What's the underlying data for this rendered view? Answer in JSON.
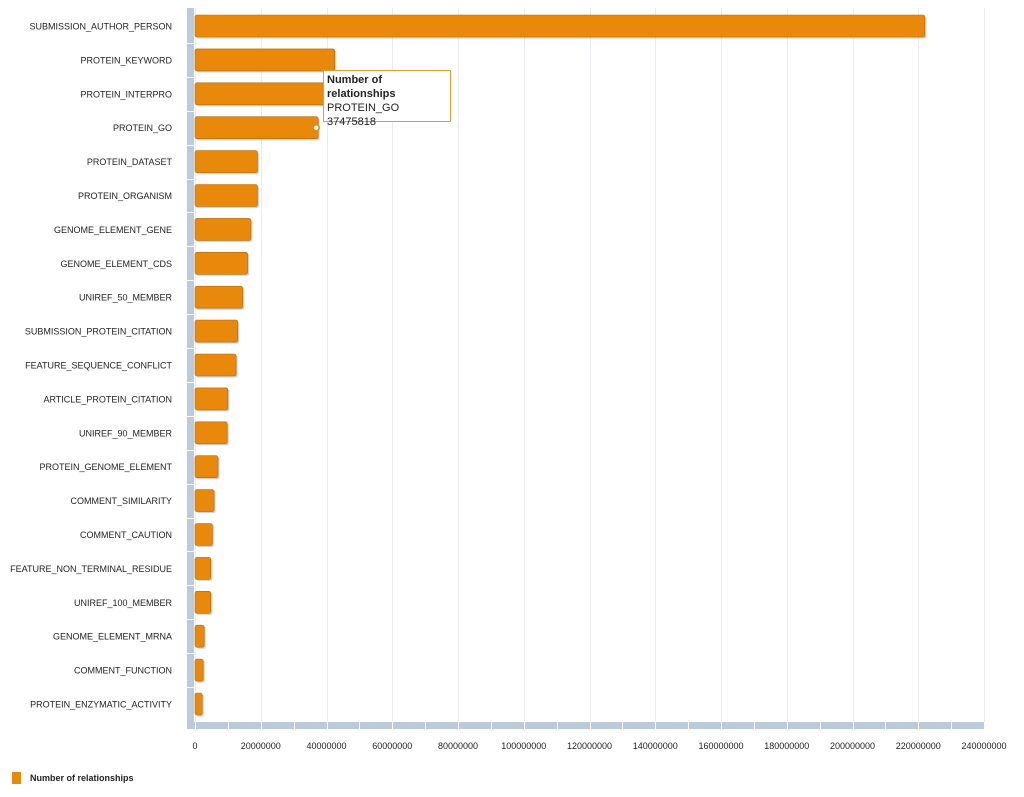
{
  "colors": {
    "bar": "#e8890c",
    "bar_stroke": "#b86a08",
    "axis": "#bccbdb",
    "grid": "#e8ecf1"
  },
  "chart_data": {
    "type": "bar",
    "orientation": "horizontal",
    "categories": [
      "SUBMISSION_AUTHOR_PERSON",
      "PROTEIN_KEYWORD",
      "PROTEIN_INTERPRO",
      "PROTEIN_GO",
      "PROTEIN_DATASET",
      "PROTEIN_ORGANISM",
      "GENOME_ELEMENT_GENE",
      "GENOME_ELEMENT_CDS",
      "UNIREF_50_MEMBER",
      "SUBMISSION_PROTEIN_CITATION",
      "FEATURE_SEQUENCE_CONFLICT",
      "ARTICLE_PROTEIN_CITATION",
      "UNIREF_90_MEMBER",
      "PROTEIN_GENOME_ELEMENT",
      "COMMENT_SIMILARITY",
      "COMMENT_CAUTION",
      "FEATURE_NON_TERMINAL_RESIDUE",
      "UNIREF_100_MEMBER",
      "GENOME_ELEMENT_MRNA",
      "COMMENT_FUNCTION",
      "PROTEIN_ENZYMATIC_ACTIVITY"
    ],
    "series": [
      {
        "name": "Number of relationships",
        "values": [
          222000000,
          42500000,
          40000000,
          37475818,
          19000000,
          19000000,
          17000000,
          16000000,
          14500000,
          13000000,
          12500000,
          10000000,
          9800000,
          7000000,
          5800000,
          5300000,
          4800000,
          4800000,
          2800000,
          2500000,
          2200000
        ]
      }
    ],
    "xlim": [
      0,
      240000000
    ],
    "xticks": [
      0,
      20000000,
      40000000,
      60000000,
      80000000,
      100000000,
      120000000,
      140000000,
      160000000,
      180000000,
      200000000,
      220000000,
      240000000
    ],
    "xtick_labels": [
      "0",
      "20000000",
      "40000000",
      "60000000",
      "80000000",
      "100000000",
      "120000000",
      "140000000",
      "160000000",
      "180000000",
      "200000000",
      "220000000",
      "240000000"
    ],
    "grid": true,
    "legend": "bottom-left",
    "title": "",
    "xlabel": "",
    "ylabel": ""
  },
  "tooltip": {
    "title": "Number of relationships",
    "category": "PROTEIN_GO",
    "value": "37475818"
  },
  "legend": {
    "label": "Number of relationships"
  }
}
